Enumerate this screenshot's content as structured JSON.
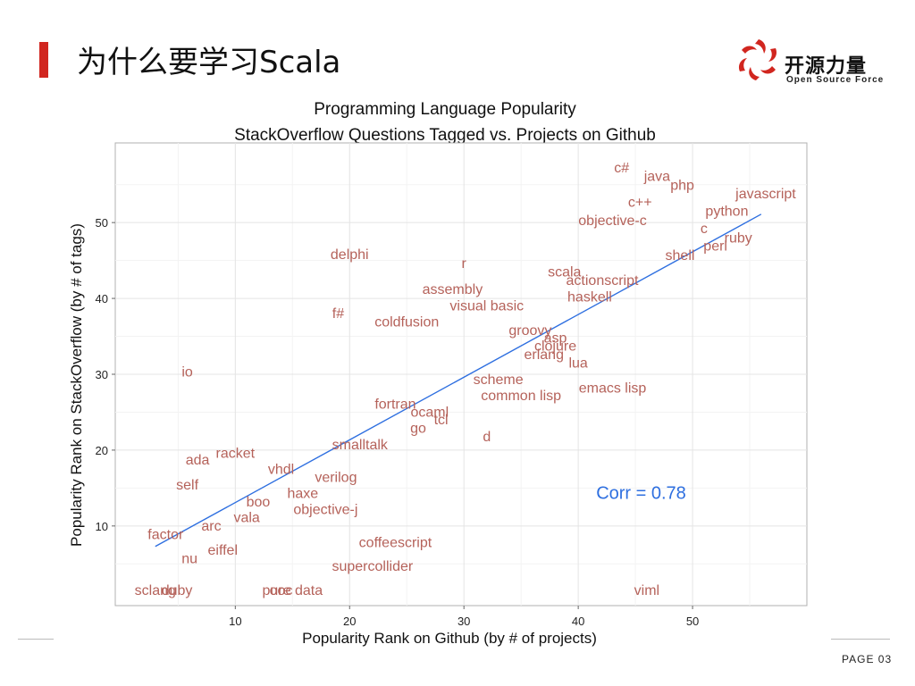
{
  "slide": {
    "title": "为什么要学习Scala",
    "page": "PAGE   03",
    "logo_cn": "开源力量",
    "logo_en": "Open Source Force",
    "accent": "#d1261f"
  },
  "chart_data": {
    "type": "scatter",
    "title": "Programming Language Popularity",
    "subtitle": "StackOverflow Questions Tagged vs. Projects on Github",
    "xlabel": "Popularity Rank on Github (by # of projects)",
    "ylabel": "Popularity Rank on StackOverflow (by # of tags)",
    "xlim": [
      -0.5,
      60
    ],
    "ylim": [
      -0.5,
      60.5
    ],
    "xticks": [
      10,
      20,
      30,
      40,
      50
    ],
    "yticks": [
      10,
      20,
      30,
      40,
      50
    ],
    "grid": true,
    "label_color": "#b5625a",
    "line_color": "#2e6fe0",
    "annotation": "Corr =  0.78",
    "fit_line": [
      [
        3,
        7.3
      ],
      [
        56,
        51.1
      ]
    ],
    "points": [
      {
        "label": "c#",
        "x": 43.8,
        "y": 57.3
      },
      {
        "label": "java",
        "x": 46.9,
        "y": 56.2
      },
      {
        "label": "php",
        "x": 49.1,
        "y": 55.0
      },
      {
        "label": "javascript",
        "x": 56.4,
        "y": 53.9
      },
      {
        "label": "c++",
        "x": 45.4,
        "y": 52.8
      },
      {
        "label": "python",
        "x": 53.0,
        "y": 51.6
      },
      {
        "label": "objective-c",
        "x": 43.0,
        "y": 50.4
      },
      {
        "label": "c",
        "x": 51.0,
        "y": 49.3
      },
      {
        "label": "ruby",
        "x": 54.0,
        "y": 48.1
      },
      {
        "label": "perl",
        "x": 52.0,
        "y": 47.0
      },
      {
        "label": "delphi",
        "x": 20.0,
        "y": 45.9
      },
      {
        "label": "shell",
        "x": 48.9,
        "y": 45.8
      },
      {
        "label": "r",
        "x": 30.0,
        "y": 44.7
      },
      {
        "label": "scala",
        "x": 38.8,
        "y": 43.6
      },
      {
        "label": "actionscript",
        "x": 42.1,
        "y": 42.5
      },
      {
        "label": "assembly",
        "x": 29.0,
        "y": 41.3
      },
      {
        "label": "haskell",
        "x": 41.0,
        "y": 40.3
      },
      {
        "label": "visual basic",
        "x": 32.0,
        "y": 39.1
      },
      {
        "label": "f#",
        "x": 19.0,
        "y": 38.1
      },
      {
        "label": "coldfusion",
        "x": 25.0,
        "y": 37.0
      },
      {
        "label": "groovy",
        "x": 35.8,
        "y": 35.9
      },
      {
        "label": "asp",
        "x": 38.0,
        "y": 34.9
      },
      {
        "label": "clojure",
        "x": 38.0,
        "y": 33.8
      },
      {
        "label": "erlang",
        "x": 37.0,
        "y": 32.7
      },
      {
        "label": "lua",
        "x": 40.0,
        "y": 31.6
      },
      {
        "label": "io",
        "x": 5.8,
        "y": 30.4
      },
      {
        "label": "scheme",
        "x": 33.0,
        "y": 29.4
      },
      {
        "label": "emacs lisp",
        "x": 43.0,
        "y": 28.3
      },
      {
        "label": "common lisp",
        "x": 35.0,
        "y": 27.3
      },
      {
        "label": "fortran",
        "x": 24.0,
        "y": 26.2
      },
      {
        "label": "ocaml",
        "x": 27.0,
        "y": 25.1
      },
      {
        "label": "tcl",
        "x": 28.0,
        "y": 24.1
      },
      {
        "label": "go",
        "x": 26.0,
        "y": 23.0
      },
      {
        "label": "d",
        "x": 32.0,
        "y": 21.9
      },
      {
        "label": "smalltalk",
        "x": 20.9,
        "y": 20.8
      },
      {
        "label": "racket",
        "x": 10.0,
        "y": 19.7
      },
      {
        "label": "ada",
        "x": 6.7,
        "y": 18.8
      },
      {
        "label": "vhdl",
        "x": 14.0,
        "y": 17.6
      },
      {
        "label": "verilog",
        "x": 18.8,
        "y": 16.5
      },
      {
        "label": "self",
        "x": 5.8,
        "y": 15.5
      },
      {
        "label": "haxe",
        "x": 15.9,
        "y": 14.4
      },
      {
        "label": "boo",
        "x": 12.0,
        "y": 13.3
      },
      {
        "label": "objective-j",
        "x": 17.9,
        "y": 12.3
      },
      {
        "label": "vala",
        "x": 11.0,
        "y": 11.2
      },
      {
        "label": "arc",
        "x": 7.9,
        "y": 10.1
      },
      {
        "label": "factor",
        "x": 3.9,
        "y": 9.0
      },
      {
        "label": "coffeescript",
        "x": 24.0,
        "y": 7.9
      },
      {
        "label": "eiffel",
        "x": 8.9,
        "y": 6.9
      },
      {
        "label": "nu",
        "x": 6.0,
        "y": 5.8
      },
      {
        "label": "supercollider",
        "x": 22.0,
        "y": 4.8
      },
      {
        "label": "sclang",
        "x": 3.0,
        "y": 1.6
      },
      {
        "label": "duby",
        "x": 4.9,
        "y": 1.6
      },
      {
        "label": "ooc",
        "x": 14.0,
        "y": 1.6
      },
      {
        "label": "pure data",
        "x": 15.0,
        "y": 1.6
      },
      {
        "label": "viml",
        "x": 46.0,
        "y": 1.6
      }
    ]
  }
}
